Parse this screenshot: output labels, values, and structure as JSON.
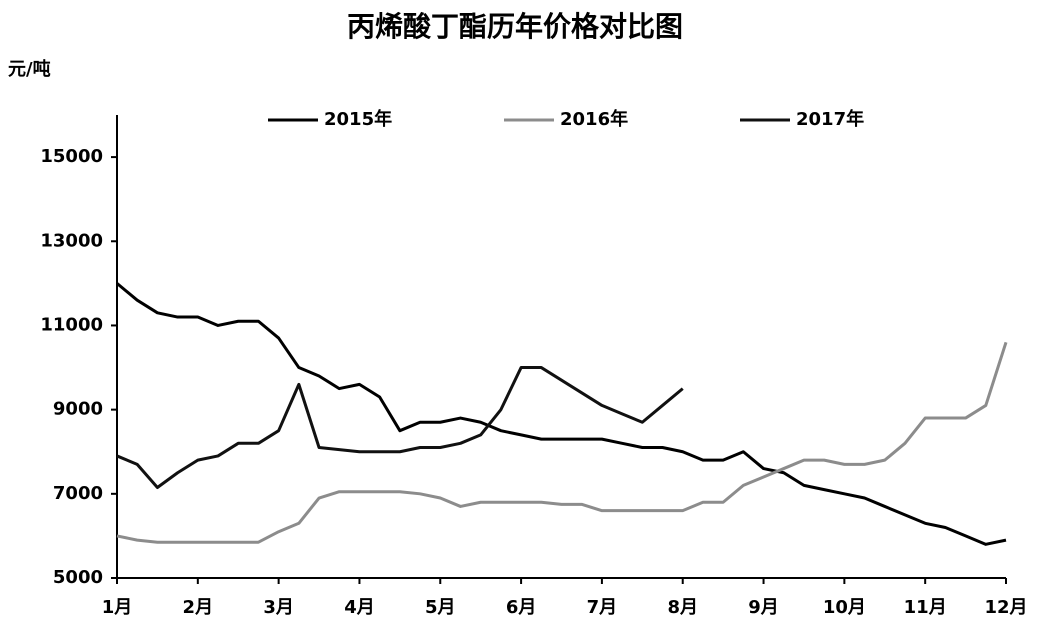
{
  "chart_data": {
    "type": "line",
    "title": "丙烯酸丁酯历年价格对比图",
    "y_label": "元/吨",
    "xlim": [
      1,
      12
    ],
    "xticks": [
      {
        "value": 1,
        "label": "1月"
      },
      {
        "value": 2,
        "label": "2月"
      },
      {
        "value": 3,
        "label": "3月"
      },
      {
        "value": 4,
        "label": "4月"
      },
      {
        "value": 5,
        "label": "5月"
      },
      {
        "value": 6,
        "label": "6月"
      },
      {
        "value": 7,
        "label": "7月"
      },
      {
        "value": 8,
        "label": "8月"
      },
      {
        "value": 9,
        "label": "9月"
      },
      {
        "value": 10,
        "label": "10月"
      },
      {
        "value": 11,
        "label": "11月"
      },
      {
        "value": 12,
        "label": "12月"
      }
    ],
    "ylim": [
      5000,
      16000
    ],
    "yticks": [
      5000,
      7000,
      9000,
      11000,
      13000,
      15000
    ],
    "grid": false,
    "legend": "top",
    "x": [
      1,
      1.25,
      1.5,
      1.75,
      2,
      2.25,
      2.5,
      2.75,
      3,
      3.25,
      3.5,
      3.75,
      4,
      4.25,
      4.5,
      4.75,
      5,
      5.25,
      5.5,
      5.75,
      6,
      6.25,
      6.5,
      6.75,
      7,
      7.25,
      7.5,
      7.75,
      8,
      8.25,
      8.5,
      8.75,
      9,
      9.25,
      9.5,
      9.75,
      10,
      10.25,
      10.5,
      10.75,
      11,
      11.25,
      11.5,
      11.75,
      12
    ],
    "series": [
      {
        "name": "2015年",
        "color": "#000000",
        "values": [
          12000,
          11600,
          11300,
          11200,
          11200,
          11000,
          11100,
          11100,
          10700,
          10000,
          9800,
          9500,
          9600,
          9300,
          8500,
          8700,
          8700,
          8800,
          8700,
          8500,
          8400,
          8300,
          8300,
          8300,
          8300,
          8200,
          8100,
          8100,
          8000,
          7800,
          7800,
          8000,
          7600,
          7500,
          7200,
          7100,
          7000,
          6900,
          6700,
          6500,
          6300,
          6200,
          6000,
          5800,
          5900
        ]
      },
      {
        "name": "2016年",
        "color": "#8c8c8c",
        "values": [
          6000,
          5900,
          5850,
          5850,
          5850,
          5850,
          5850,
          5850,
          6100,
          6300,
          6900,
          7050,
          7050,
          7050,
          7050,
          7000,
          6900,
          6700,
          6800,
          6800,
          6800,
          6800,
          6750,
          6750,
          6600,
          6600,
          6600,
          6600,
          6600,
          6800,
          6800,
          7200,
          7400,
          7600,
          7800,
          7800,
          7700,
          7700,
          7800,
          8200,
          8800,
          8800,
          8800,
          9100,
          10600
        ]
      },
      {
        "name": "2017年",
        "color": "#111111",
        "values": [
          7900,
          7700,
          7150,
          7500,
          7800,
          7900,
          8200,
          8200,
          8500,
          9600,
          8100,
          8050,
          8000,
          8000,
          8000,
          8100,
          8100,
          8200,
          8400,
          9000,
          10000,
          10000,
          9700,
          9400,
          9100,
          8900,
          8700,
          9100,
          9500,
          null,
          null,
          null,
          null,
          null,
          null,
          null,
          null,
          null,
          null,
          null,
          null,
          null,
          null,
          null,
          null
        ]
      }
    ]
  }
}
